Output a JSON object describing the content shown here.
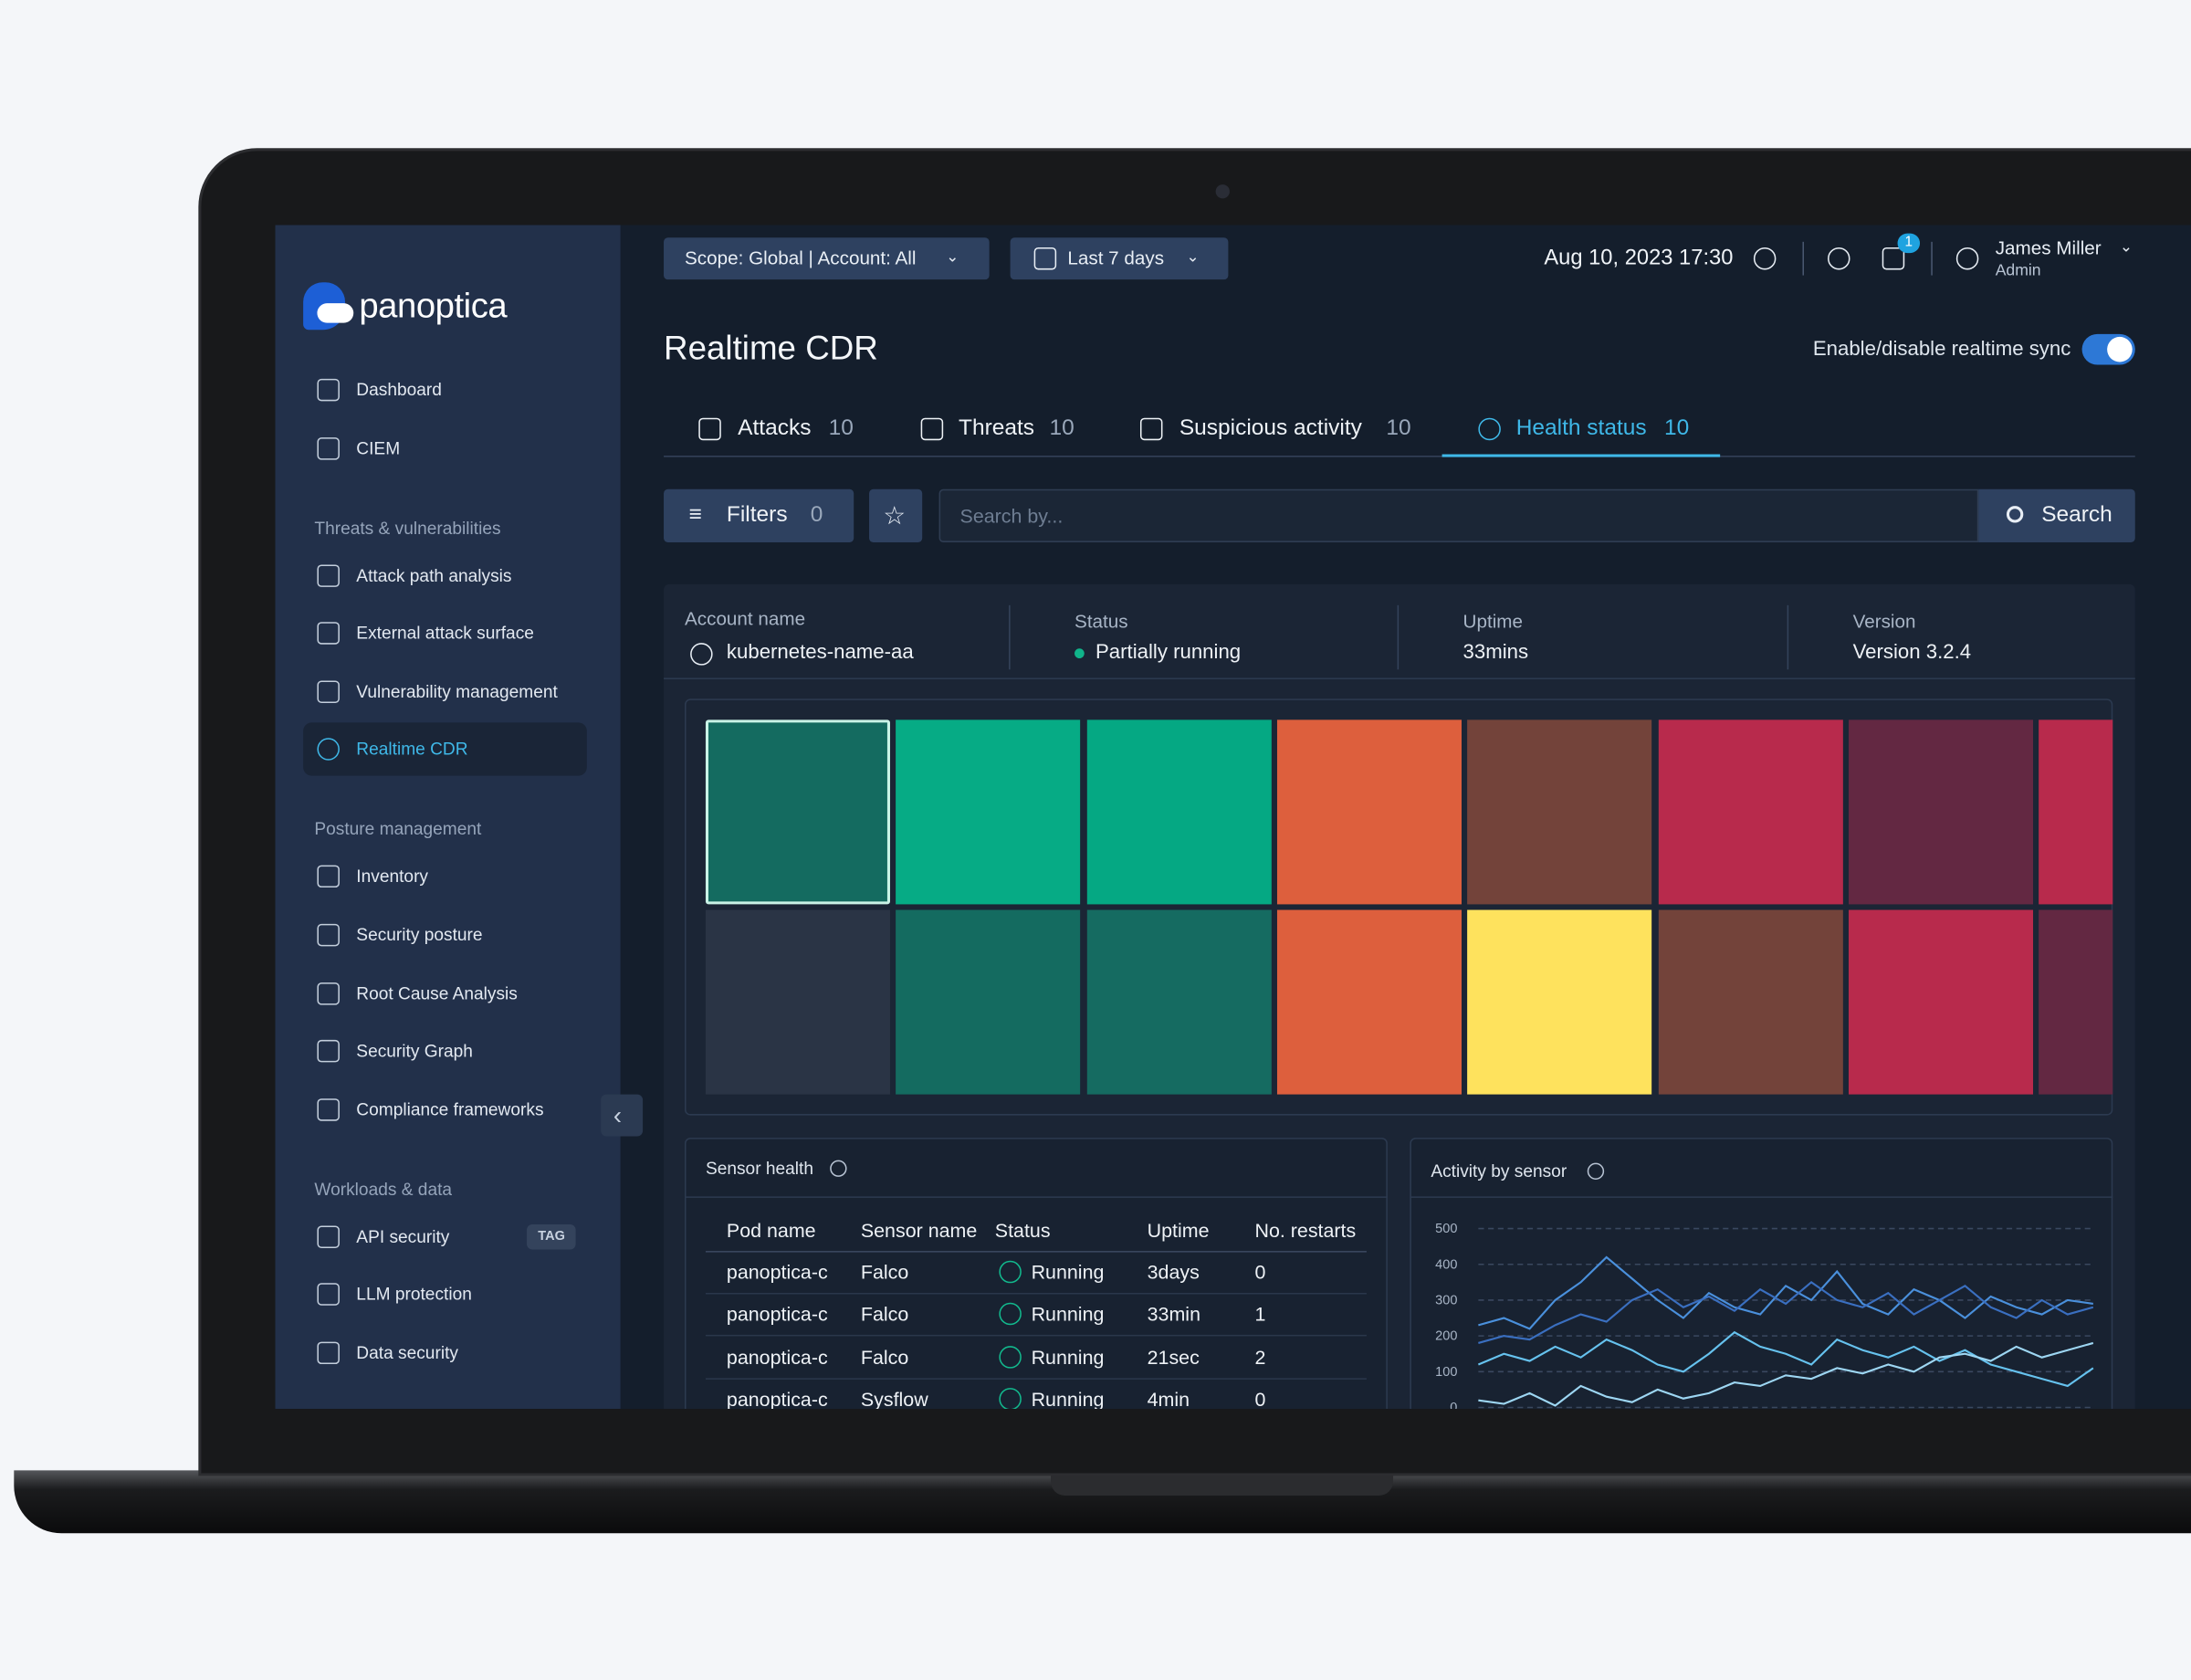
{
  "header": {
    "scope": "Scope: Global | Account: All",
    "date_range": "Last 7 days",
    "timestamp": "Aug 10, 2023 17:30",
    "notifications": 1,
    "user_name": "James Miller",
    "user_role": "Admin"
  },
  "sidebar": {
    "logo": "panoptica",
    "groups": [
      {
        "items": [
          {
            "label": "Dashboard"
          },
          {
            "label": "CIEM"
          }
        ]
      },
      {
        "title": "Threats & vulnerabilities",
        "items": [
          {
            "label": "Attack path analysis"
          },
          {
            "label": "External attack surface"
          },
          {
            "label": "Vulnerability management"
          },
          {
            "label": "Realtime CDR",
            "active": true
          }
        ]
      },
      {
        "title": "Posture management",
        "items": [
          {
            "label": "Inventory"
          },
          {
            "label": "Security posture"
          },
          {
            "label": "Root Cause Analysis"
          },
          {
            "label": "Security Graph"
          },
          {
            "label": "Compliance frameworks"
          }
        ]
      },
      {
        "title": "Workloads & data",
        "items": [
          {
            "label": "API security",
            "badge": "TAG"
          },
          {
            "label": "LLM protection"
          },
          {
            "label": "Data security"
          }
        ]
      }
    ]
  },
  "page": {
    "title": "Realtime CDR",
    "sync_label": "Enable/disable realtime sync",
    "sync_enabled": true,
    "tabs": [
      {
        "label": "Attacks",
        "count": 10
      },
      {
        "label": "Threats",
        "count": 10
      },
      {
        "label": "Suspicious activity",
        "count": 10
      },
      {
        "label": "Health status",
        "count": 10,
        "active": true
      }
    ],
    "filters": {
      "label": "Filters",
      "count": 0
    },
    "search": {
      "placeholder": "Search by...",
      "button": "Search"
    },
    "summary": [
      {
        "label": "Account name",
        "value": "kubernetes-name-aa"
      },
      {
        "label": "Status",
        "value": "Partially running"
      },
      {
        "label": "Uptime",
        "value": "33mins"
      },
      {
        "label": "Version",
        "value": "Version 3.2.4"
      }
    ],
    "heatmap": {
      "rows": [
        [
          {
            "color": "#146b60",
            "selected": true
          },
          {
            "color": "#06ab85"
          },
          {
            "color": "#05a883"
          },
          {
            "color": "#dd5f3d"
          },
          {
            "color": "#73433a"
          },
          {
            "color": "#b82a4c"
          },
          {
            "color": "#632842"
          },
          {
            "color": "#b82a4c"
          }
        ],
        [
          {
            "color": "#2a3445"
          },
          {
            "color": "#146b60"
          },
          {
            "color": "#156b61"
          },
          {
            "color": "#dd5f3d"
          },
          {
            "color": "#fee25d"
          },
          {
            "color": "#73433a"
          },
          {
            "color": "#b82a4c"
          },
          {
            "color": "#632842"
          }
        ]
      ]
    },
    "sensor_health": {
      "title": "Sensor health",
      "columns": [
        "Pod name",
        "Sensor name",
        "Status",
        "Uptime",
        "No. restarts"
      ],
      "rows": [
        [
          "panoptica-c",
          "Falco",
          "Running",
          "3days",
          0
        ],
        [
          "panoptica-c",
          "Falco",
          "Running",
          "33min",
          1
        ],
        [
          "panoptica-c",
          "Falco",
          "Running",
          "21sec",
          2
        ],
        [
          "panoptica-c",
          "Sysflow",
          "Running",
          "4min",
          0
        ]
      ]
    },
    "activity": {
      "title": "Activity by sensor",
      "type": "line",
      "ylim": [
        0,
        500
      ],
      "yticks": [
        0,
        100,
        200,
        300,
        400,
        500
      ],
      "grid": true,
      "series": [
        {
          "color": "#4a90dc",
          "values": [
            230,
            250,
            220,
            300,
            350,
            420,
            360,
            300,
            250,
            320,
            280,
            260,
            340,
            300,
            380,
            290,
            260,
            330,
            300,
            250,
            310,
            280,
            260,
            300,
            290
          ]
        },
        {
          "color": "#3a6fc0",
          "values": [
            180,
            200,
            190,
            230,
            260,
            240,
            300,
            330,
            280,
            310,
            270,
            330,
            290,
            350,
            300,
            280,
            320,
            260,
            300,
            340,
            280,
            250,
            300,
            260,
            280
          ]
        },
        {
          "color": "#66c2ee",
          "values": [
            120,
            150,
            130,
            170,
            140,
            190,
            160,
            120,
            100,
            150,
            210,
            170,
            150,
            120,
            190,
            160,
            140,
            170,
            130,
            160,
            120,
            100,
            80,
            60,
            110
          ]
        },
        {
          "color": "#9dd6f2",
          "values": [
            20,
            10,
            40,
            5,
            60,
            30,
            15,
            50,
            25,
            40,
            70,
            60,
            90,
            80,
            110,
            95,
            120,
            100,
            140,
            150,
            130,
            170,
            140,
            160,
            180
          ]
        }
      ]
    }
  }
}
